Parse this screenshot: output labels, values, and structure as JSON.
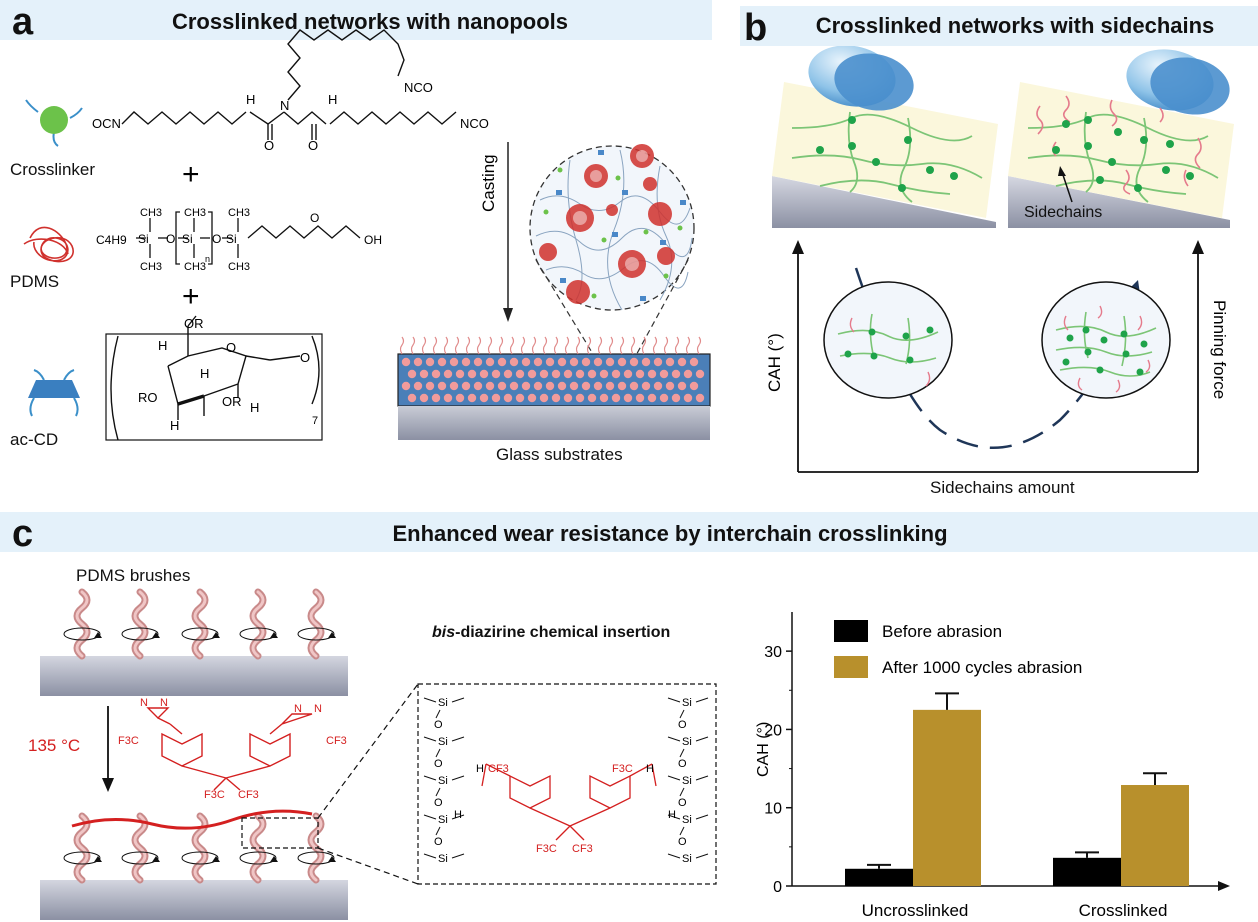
{
  "panel_a": {
    "letter": "a",
    "title": "Crosslinked networks with nanopools",
    "components": [
      {
        "label": "Crosslinker",
        "icon": "crosslinker-icon"
      },
      {
        "label": "PDMS",
        "icon": "pdms-coil-icon"
      },
      {
        "label": "ac-CD",
        "icon": "ac-cd-icon"
      }
    ],
    "plus": "+",
    "casting": "Casting",
    "substrate": "Glass substrates",
    "chem_labels": {
      "nco_top": "NCO",
      "nco_left": "OCN",
      "nco_right": "NCO",
      "nh": "H",
      "n": "N",
      "o": "O",
      "pdms_c4h9": "C4H9",
      "si": "Si",
      "ch3": "CH3",
      "n_sub": "n",
      "oh": "OH",
      "or": "OR",
      "ro": "RO",
      "h": "H",
      "seven": "7"
    }
  },
  "panel_b": {
    "letter": "b",
    "title": "Crosslinked networks with sidechains",
    "sidechains_label": "Sidechains",
    "y_left": "CAH (°)",
    "y_right": "Pinning force",
    "x_label": "Sidechains amount"
  },
  "panel_c": {
    "letter": "c",
    "title": "Enhanced wear resistance by interchain crosslinking",
    "brushes_label": "PDMS brushes",
    "temperature": "135 °C",
    "insertion_label": "bis-diazirine chemical insertion",
    "insertion_italic": "bis",
    "insertion_rest": "-diazirine chemical insertion",
    "chem": {
      "n": "N",
      "f3c": "F3C",
      "cf3": "CF3",
      "si": "Si",
      "o": "O",
      "h": "H"
    }
  },
  "chart_data": {
    "type": "bar",
    "categories": [
      "Uncrosslinked",
      "Crosslinked"
    ],
    "series": [
      {
        "name": "Before abrasion",
        "values": [
          2.2,
          3.6
        ],
        "errors": [
          0.5,
          0.7
        ],
        "color": "#000000"
      },
      {
        "name": "After 1000 cycles abrasion",
        "values": [
          22.5,
          12.9
        ],
        "errors": [
          2.1,
          1.5
        ],
        "color": "#b8902c"
      }
    ],
    "title": "",
    "xlabel": "",
    "ylabel": "CAH (°)",
    "ylim": [
      0,
      35
    ],
    "yticks": [
      0,
      10,
      20,
      30
    ],
    "grid": false,
    "legend": "top-left"
  }
}
